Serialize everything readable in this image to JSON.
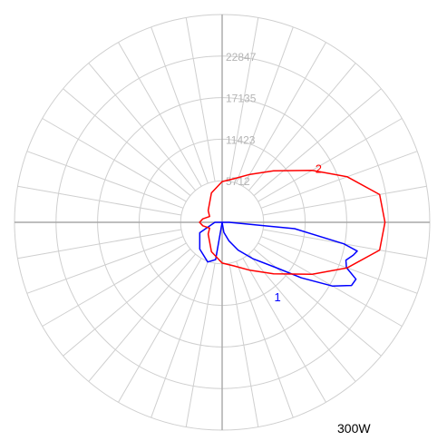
{
  "chart_data": {
    "type": "polar",
    "caption": "300W",
    "r_ticks": [
      5712,
      11423,
      17135,
      22847
    ],
    "r_tick_labels": [
      "5712",
      "11423",
      "17135",
      "22847"
    ],
    "r_max": 28560,
    "angle_divisions": 36,
    "grid": true,
    "zero_direction": "down",
    "series": [
      {
        "name": "",
        "label": "1",
        "color": "#0000ff",
        "points": [
          {
            "angle": 0,
            "r": 0
          },
          {
            "angle": 10,
            "r": 1400
          },
          {
            "angle": 20,
            "r": 2700
          },
          {
            "angle": 30,
            "r": 4400
          },
          {
            "angle": 40,
            "r": 6500
          },
          {
            "angle": 50,
            "r": 9700
          },
          {
            "angle": 55,
            "r": 13300
          },
          {
            "angle": 60,
            "r": 17500
          },
          {
            "angle": 64,
            "r": 19800
          },
          {
            "angle": 67,
            "r": 20000
          },
          {
            "angle": 70,
            "r": 18200
          },
          {
            "angle": 73,
            "r": 17800
          },
          {
            "angle": 76,
            "r": 18600
          },
          {
            "angle": 78,
            "r": 19000
          },
          {
            "angle": 80,
            "r": 17000
          },
          {
            "angle": 85,
            "r": 10000
          },
          {
            "angle": 90,
            "r": 1000
          },
          {
            "angle": 180,
            "r": 0
          },
          {
            "angle": 270,
            "r": 1000
          },
          {
            "angle": 295,
            "r": 3400
          },
          {
            "angle": 320,
            "r": 4800
          },
          {
            "angle": 340,
            "r": 5800
          },
          {
            "angle": 350,
            "r": 5200
          },
          {
            "angle": 360,
            "r": 0
          }
        ]
      },
      {
        "name": "",
        "label": "2",
        "color": "#ff0000",
        "points": [
          {
            "angle": 0,
            "r": 5600
          },
          {
            "angle": 15,
            "r": 6200
          },
          {
            "angle": 30,
            "r": 7600
          },
          {
            "angle": 45,
            "r": 10000
          },
          {
            "angle": 60,
            "r": 14300
          },
          {
            "angle": 70,
            "r": 18300
          },
          {
            "angle": 80,
            "r": 22000
          },
          {
            "angle": 90,
            "r": 22400
          },
          {
            "angle": 100,
            "r": 22000
          },
          {
            "angle": 110,
            "r": 18300
          },
          {
            "angle": 120,
            "r": 14300
          },
          {
            "angle": 135,
            "r": 10000
          },
          {
            "angle": 150,
            "r": 7600
          },
          {
            "angle": 165,
            "r": 6200
          },
          {
            "angle": 180,
            "r": 5600
          },
          {
            "angle": 200,
            "r": 4300
          },
          {
            "angle": 230,
            "r": 2500
          },
          {
            "angle": 245,
            "r": 1900
          },
          {
            "angle": 260,
            "r": 2700
          },
          {
            "angle": 270,
            "r": 3100
          },
          {
            "angle": 280,
            "r": 2700
          },
          {
            "angle": 295,
            "r": 1900
          },
          {
            "angle": 310,
            "r": 2500
          },
          {
            "angle": 340,
            "r": 4300
          },
          {
            "angle": 360,
            "r": 5600
          }
        ]
      }
    ]
  }
}
